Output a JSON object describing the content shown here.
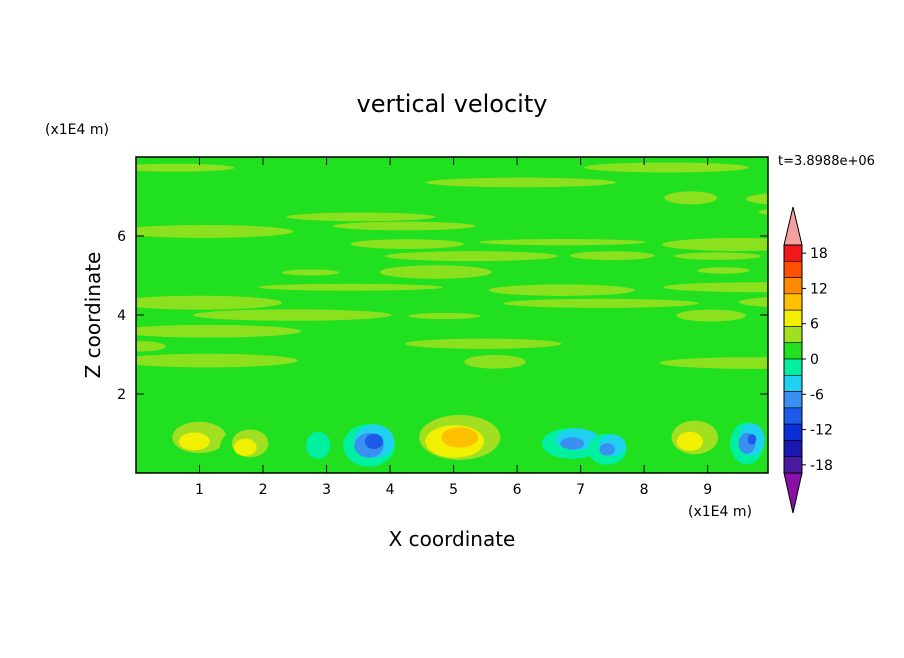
{
  "chart_data": {
    "type": "heatmap",
    "title": "vertical velocity",
    "xlabel": "X coordinate",
    "ylabel": "Z coordinate",
    "x_unit": "(x1E4 m)",
    "y_unit": "(x1E4 m)",
    "time_label": "t=3.8988e+06",
    "xlim": [
      0,
      9.95
    ],
    "ylim": [
      0,
      8
    ],
    "x_ticks": [
      1,
      2,
      3,
      4,
      5,
      6,
      7,
      8,
      9
    ],
    "y_ticks": [
      2,
      4,
      6
    ],
    "background_level": 0,
    "levels": [
      -21,
      -18,
      -15,
      -12,
      -9,
      -6,
      -3,
      0,
      3,
      6,
      9,
      12,
      15,
      18,
      21
    ],
    "colorbar": {
      "colors": [
        "#8a10a8",
        "#4a1aa0",
        "#1a18b0",
        "#0a2ed8",
        "#1e5ae8",
        "#3a90f0",
        "#20d0f0",
        "#00f0a0",
        "#20e020",
        "#a0e020",
        "#f0f000",
        "#ffc000",
        "#ff8a00",
        "#ff5000",
        "#f01818",
        "#f4a0a0"
      ],
      "tick_labels": [
        "18",
        "12",
        "6",
        "0",
        "-6",
        "-12",
        "-18"
      ],
      "tick_values": [
        18,
        12,
        6,
        0,
        -6,
        -12,
        -18
      ]
    },
    "cells": [
      {
        "x": 0.95,
        "z": 0.85,
        "peak": 10,
        "rx": 0.7,
        "rz": 0.65
      },
      {
        "x": 1.75,
        "z": 0.7,
        "peak": 11,
        "rx": 0.45,
        "rz": 0.55
      },
      {
        "x": 2.9,
        "z": 0.75,
        "peak": -5,
        "rx": 0.25,
        "rz": 0.45
      },
      {
        "x": 3.7,
        "z": 0.75,
        "peak": -14,
        "rx": 0.45,
        "rz": 0.6
      },
      {
        "x": 5.05,
        "z": 0.85,
        "peak": 14,
        "rx": 0.9,
        "rz": 0.8
      },
      {
        "x": 6.9,
        "z": 0.8,
        "peak": -10,
        "rx": 0.55,
        "rz": 0.45
      },
      {
        "x": 7.45,
        "z": 0.65,
        "peak": -10,
        "rx": 0.35,
        "rz": 0.45
      },
      {
        "x": 8.75,
        "z": 0.85,
        "peak": 10,
        "rx": 0.6,
        "rz": 0.7
      },
      {
        "x": 9.65,
        "z": 0.8,
        "peak": -12,
        "rx": 0.3,
        "rz": 0.6
      }
    ]
  }
}
